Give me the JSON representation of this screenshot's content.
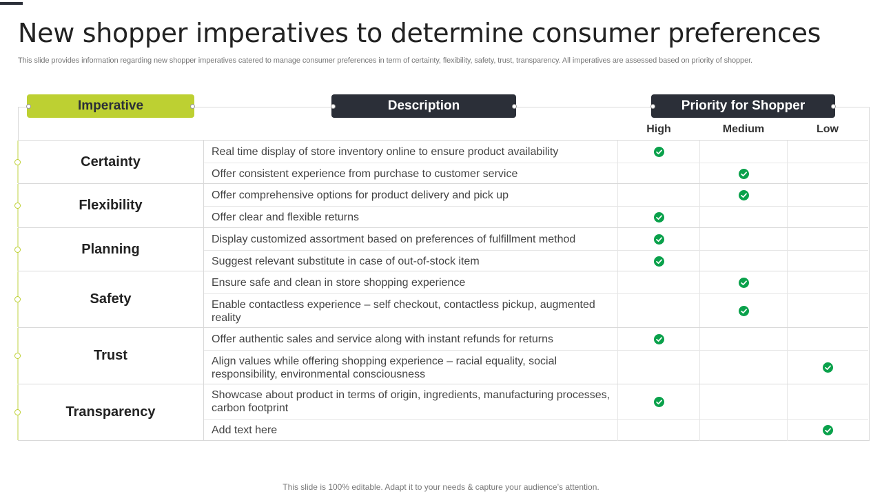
{
  "title": "New shopper imperatives to determine consumer preferences",
  "subtitle": "This slide provides information regarding new shopper imperatives catered to manage consumer preferences in term of certainty, flexibility, safety, trust, transparency. All imperatives are assessed based on priority of shopper.",
  "headers": {
    "imperative": "Imperative",
    "description": "Description",
    "priority": "Priority for Shopper",
    "high": "High",
    "medium": "Medium",
    "low": "Low"
  },
  "icon": "check-circle-icon",
  "check_color": "#0aa14b",
  "accent_color": "#bdd032",
  "dark_color": "#2b2f38",
  "groups": [
    {
      "name": "Certainty",
      "rows": [
        {
          "description": "Real time display of store inventory  online to ensure product availability",
          "priority": "high"
        },
        {
          "description": "Offer consistent experience from purchase to customer service",
          "priority": "medium"
        }
      ]
    },
    {
      "name": "Flexibility",
      "rows": [
        {
          "description": "Offer comprehensive options for product delivery and pick up",
          "priority": "medium"
        },
        {
          "description": "Offer clear and flexible returns",
          "priority": "high"
        }
      ]
    },
    {
      "name": "Planning",
      "rows": [
        {
          "description": "Display customized assortment based on preferences of fulfillment  method",
          "priority": "high"
        },
        {
          "description": "Suggest relevant substitute in case of out-of-stock item",
          "priority": "high"
        }
      ]
    },
    {
      "name": "Safety",
      "rows": [
        {
          "description": "Ensure safe and clean in store shopping experience",
          "priority": "medium"
        },
        {
          "description": "Enable contactless experience – self checkout, contactless pickup, augmented reality",
          "priority": "medium"
        }
      ]
    },
    {
      "name": "Trust",
      "rows": [
        {
          "description": "Offer authentic sales and service along with instant refunds for returns",
          "priority": "high"
        },
        {
          "description": "Align values while offering shopping experience – racial equality, social responsibility, environmental consciousness",
          "priority": "low"
        }
      ]
    },
    {
      "name": "Transparency",
      "rows": [
        {
          "description": "Showcase about product in terms of origin, ingredients, manufacturing processes, carbon footprint",
          "priority": "high"
        },
        {
          "description": "Add text here",
          "priority": "low"
        }
      ]
    }
  ],
  "footer": "This slide is 100% editable. Adapt it to your needs & capture your audience’s attention."
}
